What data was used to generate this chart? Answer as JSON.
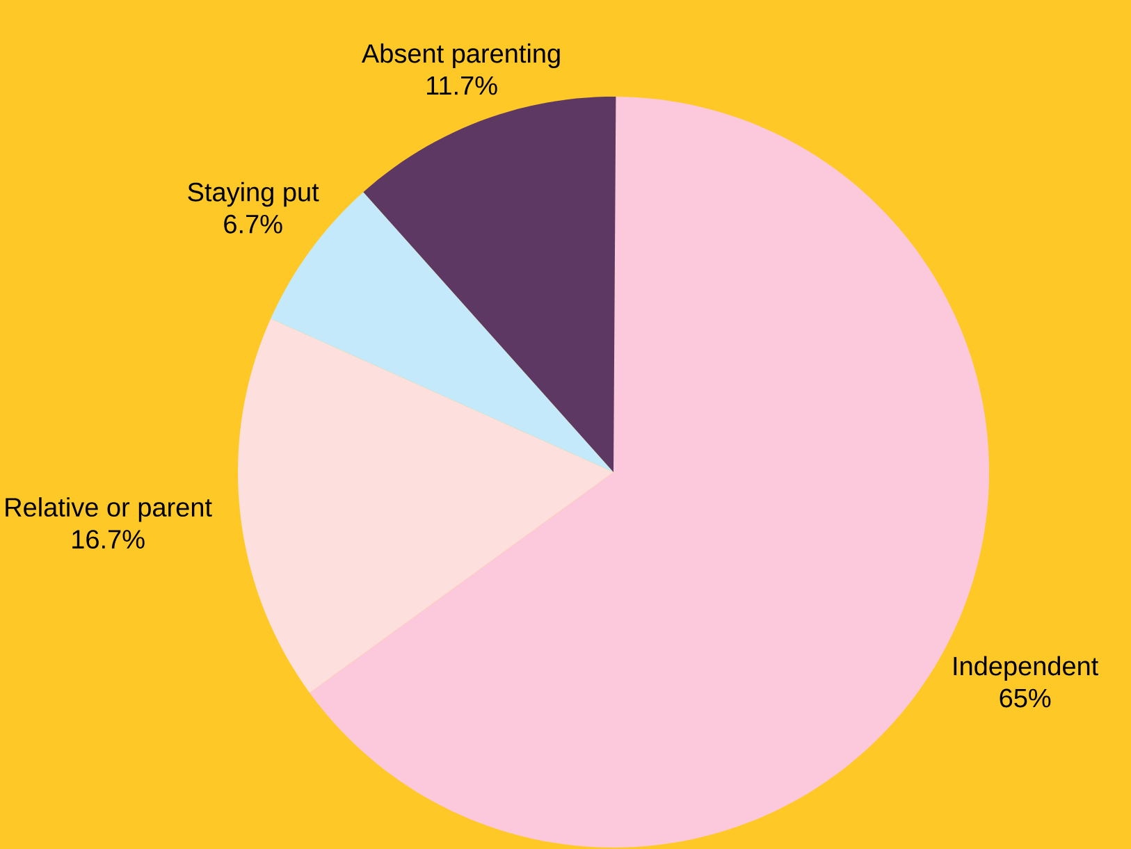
{
  "chart_data": {
    "type": "pie",
    "categories": [
      "Independent",
      "Relative or parent",
      "Staying put",
      "Absent parenting"
    ],
    "values": [
      65,
      16.7,
      6.7,
      11.7
    ],
    "value_labels": [
      "65%",
      "16.7%",
      "6.7%",
      "11.7%"
    ],
    "colors": [
      "#fbc8dc",
      "#fde0dd",
      "#c4e9fb",
      "#5c3863"
    ]
  }
}
